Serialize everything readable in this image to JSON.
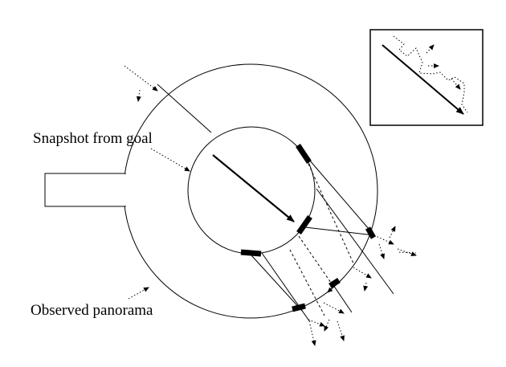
{
  "labels": {
    "snapshot": "Snapshot from goal",
    "panorama": "Observed panorama"
  },
  "colors": {
    "ink": "#000000",
    "background": "#ffffff"
  }
}
